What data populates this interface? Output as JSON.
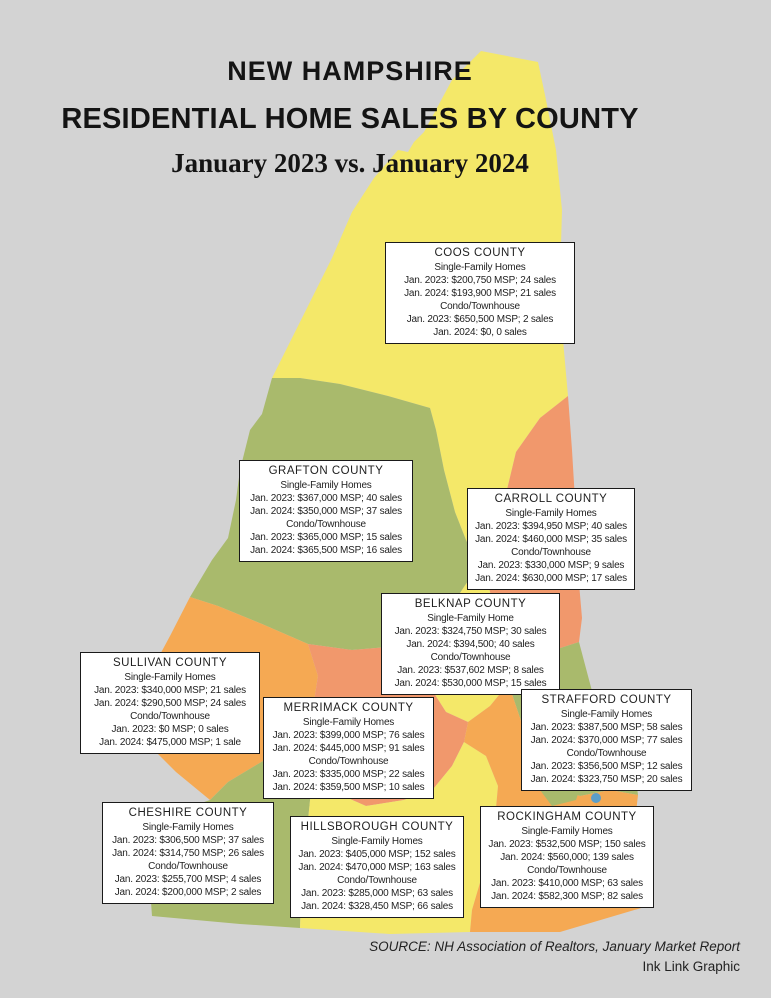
{
  "title": {
    "line1": "NEW HAMPSHIRE",
    "line2": "RESIDENTIAL HOME SALES BY COUNTY",
    "line3": "January 2023 vs. January 2024"
  },
  "footer": {
    "source": "SOURCE: NH Association of Realtors, January Market Report",
    "credit": "Ink Link Graphic"
  },
  "colors": {
    "background": "#d3d3d3",
    "county_yellow": "#f4e869",
    "county_olive": "#a9ba6c",
    "county_salmon": "#f1986c",
    "county_orange": "#f5a953",
    "water_blue": "#5b9ec9",
    "box_border": "#1a1a1a",
    "box_background": "#ffffff",
    "text": "#1a1a1a"
  },
  "map": {
    "counties": [
      {
        "id": "coos",
        "fill": "county_yellow"
      },
      {
        "id": "grafton",
        "fill": "county_olive"
      },
      {
        "id": "carroll",
        "fill": "county_salmon"
      },
      {
        "id": "belknap",
        "fill": "county_yellow"
      },
      {
        "id": "strafford",
        "fill": "county_olive"
      },
      {
        "id": "sullivan",
        "fill": "county_orange"
      },
      {
        "id": "merrimack",
        "fill": "county_salmon"
      },
      {
        "id": "cheshire",
        "fill": "county_olive"
      },
      {
        "id": "hillsborough",
        "fill": "county_yellow"
      },
      {
        "id": "rockingham",
        "fill": "county_orange"
      },
      {
        "id": "seacoast-patch",
        "fill": "county_olive"
      }
    ]
  },
  "boxes": [
    {
      "id": "coos",
      "county": "COOS COUNTY",
      "lines": [
        "Single-Family Homes",
        "Jan. 2023: $200,750 MSP; 24 sales",
        "Jan. 2024: $193,900 MSP; 21 sales",
        "Condo/Townhouse",
        "Jan. 2023: $650,500 MSP; 2 sales",
        "Jan. 2024: $0, 0 sales"
      ]
    },
    {
      "id": "grafton",
      "county": "GRAFTON COUNTY",
      "lines": [
        "Single-Family Homes",
        "Jan. 2023: $367,000 MSP; 40 sales",
        "Jan. 2024: $350,000 MSP; 37 sales",
        "Condo/Townhouse",
        "Jan. 2023: $365,000 MSP; 15 sales",
        "Jan. 2024: $365,500 MSP; 16 sales"
      ]
    },
    {
      "id": "carroll",
      "county": "CARROLL COUNTY",
      "lines": [
        "Single-Family Homes",
        "Jan. 2023: $394,950 MSP; 40 sales",
        "Jan. 2024: $460,000 MSP; 35 sales",
        "Condo/Townhouse",
        "Jan. 2023: $330,000 MSP; 9 sales",
        "Jan. 2024: $630,000 MSP; 17 sales"
      ]
    },
    {
      "id": "belknap",
      "county": "BELKNAP COUNTY",
      "lines": [
        "Single-Family Home",
        "Jan. 2023: $324,750 MSP; 30 sales",
        "Jan. 2024: $394,500; 40 sales",
        "Condo/Townhouse",
        "Jan. 2023: $537,602 MSP; 8 sales",
        "Jan. 2024: $530,000 MSP; 15 sales"
      ]
    },
    {
      "id": "sullivan",
      "county": "SULLIVAN COUNTY",
      "lines": [
        "Single-Family Homes",
        "Jan. 2023: $340,000 MSP; 21 sales",
        "Jan. 2024: $290,500 MSP; 24 sales",
        "Condo/Townhouse",
        "Jan. 2023: $0 MSP; 0 sales",
        "Jan. 2024: $475,000 MSP; 1 sale"
      ]
    },
    {
      "id": "merrimack",
      "county": "MERRIMACK COUNTY",
      "lines": [
        "Single-Family Homes",
        "Jan. 2023: $399,000 MSP; 76 sales",
        "Jan. 2024: $445,000 MSP; 91 sales",
        "Condo/Townhouse",
        "Jan. 2023: $335,000 MSP; 22 sales",
        "Jan. 2024: $359,500 MSP; 10 sales"
      ]
    },
    {
      "id": "strafford",
      "county": "STRAFFORD COUNTY",
      "lines": [
        "Single-Family Homes",
        "Jan. 2023: $387,500 MSP; 58 sales",
        "Jan. 2024: $370,000 MSP; 77 sales",
        "Condo/Townhouse",
        "Jan. 2023: $356,500 MSP; 12 sales",
        "Jan. 2024: $323,750 MSP; 20 sales"
      ]
    },
    {
      "id": "cheshire",
      "county": "CHESHIRE COUNTY",
      "lines": [
        "Single-Family Homes",
        "Jan. 2023: $306,500 MSP; 37 sales",
        "Jan. 2024: $314,750 MSP; 26 sales",
        "Condo/Townhouse",
        "Jan. 2023: $255,700 MSP; 4 sales",
        "Jan. 2024: $200,000 MSP; 2 sales"
      ]
    },
    {
      "id": "hillsborough",
      "county": "HILLSBOROUGH COUNTY",
      "lines": [
        "Single-Family Homes",
        "Jan. 2023: $405,000 MSP; 152 sales",
        "Jan. 2024: $470,000 MSP; 163 sales",
        "Condo/Townhouse",
        "Jan. 2023: $285,000 MSP; 63 sales",
        "Jan. 2024: $328,450 MSP; 66 sales"
      ]
    },
    {
      "id": "rockingham",
      "county": "ROCKINGHAM COUNTY",
      "lines": [
        "Single-Family Homes",
        "Jan. 2023: $532,500 MSP; 150 sales",
        "Jan. 2024: $560,000; 139 sales",
        "Condo/Townhouse",
        "Jan. 2023: $410,000 MSP; 63 sales",
        "Jan. 2024: $582,300 MSP; 82 sales"
      ]
    }
  ]
}
